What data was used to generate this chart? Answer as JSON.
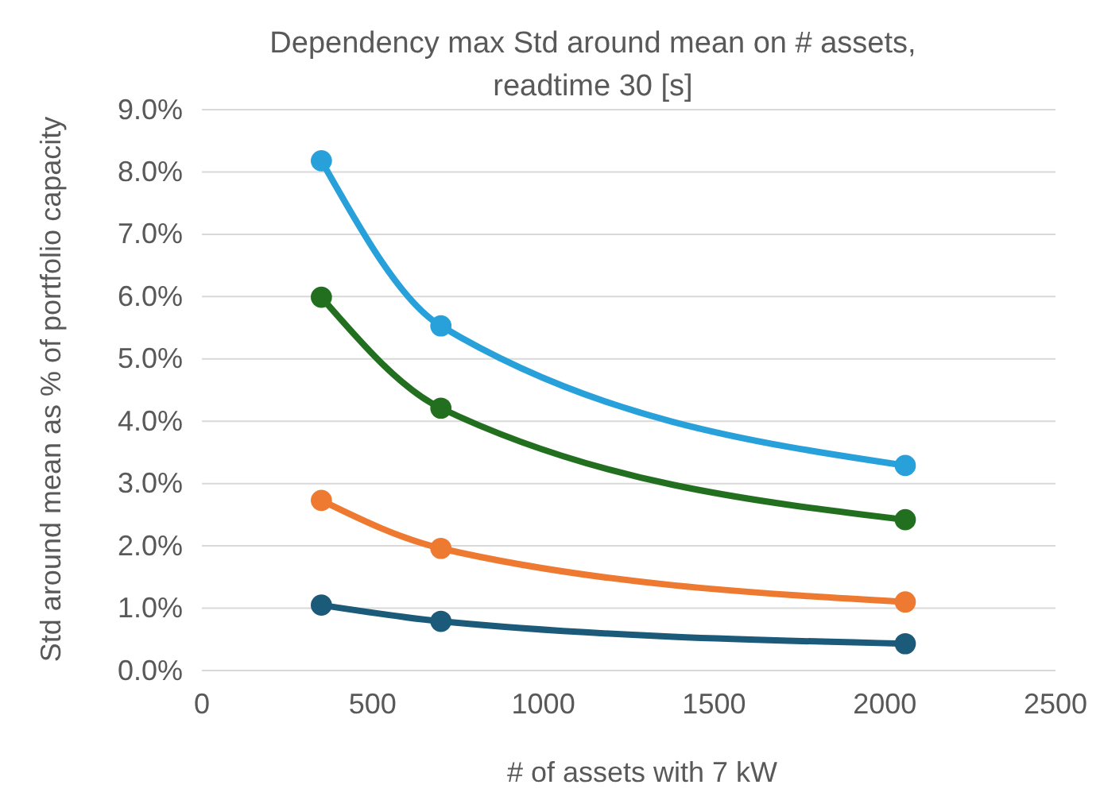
{
  "chart_data": {
    "type": "line",
    "title": "Dependency max Std around mean on # assets, readtime 30 [s]",
    "xlabel": "# of assets with 7 kW",
    "ylabel": "Std around mean as % of portfolio capacity",
    "x": [
      350,
      700,
      2060
    ],
    "series": [
      {
        "color": "#28a0d9",
        "values": [
          8.18,
          5.53,
          3.29
        ]
      },
      {
        "color": "#22701f",
        "values": [
          5.99,
          4.21,
          2.42
        ]
      },
      {
        "color": "#ee7a31",
        "values": [
          2.73,
          1.96,
          1.1
        ]
      },
      {
        "color": "#1c5a79",
        "values": [
          1.05,
          0.79,
          0.43
        ]
      }
    ],
    "xlim": [
      0,
      2500
    ],
    "xticks": [
      0,
      500,
      1000,
      1500,
      2000,
      2500
    ],
    "ylim": [
      0,
      9
    ],
    "yticks": [
      {
        "value": 0,
        "label": "0.0%"
      },
      {
        "value": 1,
        "label": "1.0%"
      },
      {
        "value": 2,
        "label": "2.0%"
      },
      {
        "value": 3,
        "label": "3.0%"
      },
      {
        "value": 4,
        "label": "4.0%"
      },
      {
        "value": 5,
        "label": "5.0%"
      },
      {
        "value": 6,
        "label": "6.0%"
      },
      {
        "value": 7,
        "label": "7.0%"
      },
      {
        "value": 8,
        "label": "8.0%"
      },
      {
        "value": 9,
        "label": "9.0%"
      }
    ],
    "grid": "y",
    "marker": "circle",
    "line_style": "solid"
  }
}
